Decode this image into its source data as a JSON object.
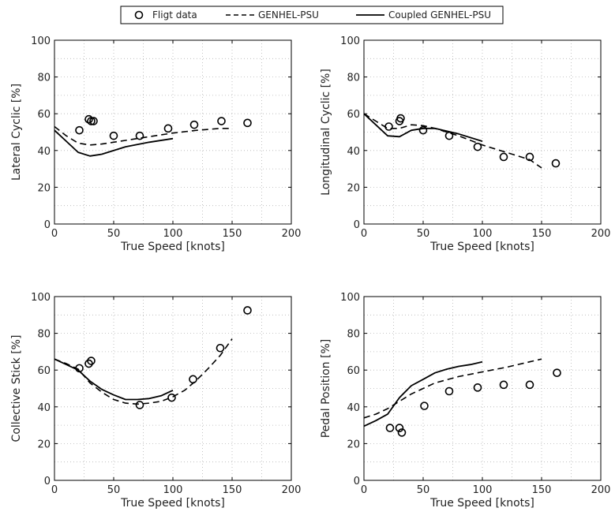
{
  "legend": {
    "position": "top-center",
    "entries": [
      {
        "label": "Fligt data",
        "style": "circle-marker"
      },
      {
        "label": "GENHEL-PSU",
        "style": "dashed"
      },
      {
        "label": "Coupled GENHEL-PSU",
        "style": "solid"
      }
    ]
  },
  "chart_data": [
    {
      "type": "line",
      "xlabel": "True Speed [knots]",
      "ylabel": "Lateral Cyclic [%]",
      "xlim": [
        0,
        200
      ],
      "ylim": [
        0,
        100
      ],
      "xticks": [
        0,
        50,
        100,
        150,
        200
      ],
      "yticks": [
        0,
        20,
        40,
        60,
        80,
        100
      ],
      "grid": true,
      "series": [
        {
          "style": "markers",
          "x": [
            21,
            29,
            31,
            33,
            50,
            72,
            96,
            118,
            141,
            163
          ],
          "y": [
            51,
            57,
            56,
            56,
            48,
            48,
            52,
            54,
            56,
            55
          ]
        },
        {
          "style": "dashed",
          "x": [
            0,
            10,
            20,
            30,
            40,
            60,
            80,
            100,
            120,
            140,
            150
          ],
          "y": [
            53,
            48,
            44,
            43,
            43.5,
            45.5,
            47.5,
            49.5,
            51,
            52,
            52
          ]
        },
        {
          "style": "solid",
          "x": [
            0,
            10,
            20,
            30,
            40,
            60,
            80,
            100
          ],
          "y": [
            51,
            45,
            39,
            37,
            38,
            42,
            44.5,
            46.5
          ]
        }
      ]
    },
    {
      "type": "line",
      "xlabel": "True Speed [knots]",
      "ylabel": "Longitudinal Cyclic [%]",
      "xlim": [
        0,
        200
      ],
      "ylim": [
        0,
        100
      ],
      "xticks": [
        0,
        50,
        100,
        150,
        200
      ],
      "yticks": [
        0,
        20,
        40,
        60,
        80,
        100
      ],
      "grid": true,
      "series": [
        {
          "style": "markers",
          "x": [
            21,
            30,
            31,
            50,
            72,
            96,
            118,
            140,
            162
          ],
          "y": [
            53,
            56,
            57.5,
            51,
            48,
            42,
            36.5,
            36.5,
            33
          ]
        },
        {
          "style": "dashed",
          "x": [
            0,
            10,
            20,
            30,
            40,
            50,
            60,
            80,
            100,
            120,
            140,
            150
          ],
          "y": [
            60,
            56,
            52,
            52,
            54,
            53.5,
            52,
            48,
            43,
            39,
            35,
            30.5
          ]
        },
        {
          "style": "solid",
          "x": [
            0,
            10,
            20,
            30,
            40,
            50,
            60,
            80,
            100
          ],
          "y": [
            60,
            54,
            48,
            47.5,
            51,
            52,
            52,
            49,
            45
          ]
        }
      ]
    },
    {
      "type": "line",
      "xlabel": "True Speed [knots]",
      "ylabel": "Collective Stick [%]",
      "xlim": [
        0,
        200
      ],
      "ylim": [
        0,
        100
      ],
      "xticks": [
        0,
        50,
        100,
        150,
        200
      ],
      "yticks": [
        0,
        20,
        40,
        60,
        80,
        100
      ],
      "grid": true,
      "series": [
        {
          "style": "markers",
          "x": [
            21,
            29,
            31,
            72,
            99,
            117,
            140,
            163
          ],
          "y": [
            61,
            63.5,
            65,
            41,
            45,
            55,
            72,
            92.5
          ]
        },
        {
          "style": "dashed",
          "x": [
            0,
            10,
            20,
            30,
            40,
            50,
            60,
            70,
            80,
            90,
            100,
            110,
            120,
            130,
            140,
            150
          ],
          "y": [
            66,
            63.5,
            60.5,
            53,
            48,
            44,
            42,
            41.5,
            42,
            43,
            45.5,
            49,
            54.5,
            61,
            68,
            77
          ]
        },
        {
          "style": "solid",
          "x": [
            0,
            10,
            20,
            30,
            40,
            50,
            60,
            70,
            80,
            90,
            100
          ],
          "y": [
            66,
            63,
            60,
            54,
            49.5,
            46.5,
            44,
            44,
            44.5,
            46,
            49
          ]
        }
      ]
    },
    {
      "type": "line",
      "xlabel": "True Speed [knots]",
      "ylabel": "Pedal Position [%]",
      "xlim": [
        0,
        200
      ],
      "ylim": [
        0,
        100
      ],
      "xticks": [
        0,
        50,
        100,
        150,
        200
      ],
      "yticks": [
        0,
        20,
        40,
        60,
        80,
        100
      ],
      "grid": true,
      "series": [
        {
          "style": "markers",
          "x": [
            22,
            30,
            32,
            51,
            72,
            96,
            118,
            140,
            163
          ],
          "y": [
            28.5,
            28.5,
            26,
            40.5,
            48.5,
            50.5,
            52,
            52,
            58.5
          ]
        },
        {
          "style": "dashed",
          "x": [
            0,
            10,
            20,
            30,
            40,
            50,
            60,
            80,
            100,
            120,
            140,
            150
          ],
          "y": [
            34,
            36,
            39,
            43,
            47,
            50,
            53,
            56.5,
            59,
            61.5,
            64.5,
            66
          ]
        },
        {
          "style": "solid",
          "x": [
            0,
            10,
            20,
            30,
            40,
            50,
            60,
            70,
            80,
            90,
            100
          ],
          "y": [
            29.5,
            32.5,
            36,
            45,
            51.5,
            55,
            58.5,
            60.5,
            62,
            63,
            64.5
          ]
        }
      ]
    }
  ]
}
